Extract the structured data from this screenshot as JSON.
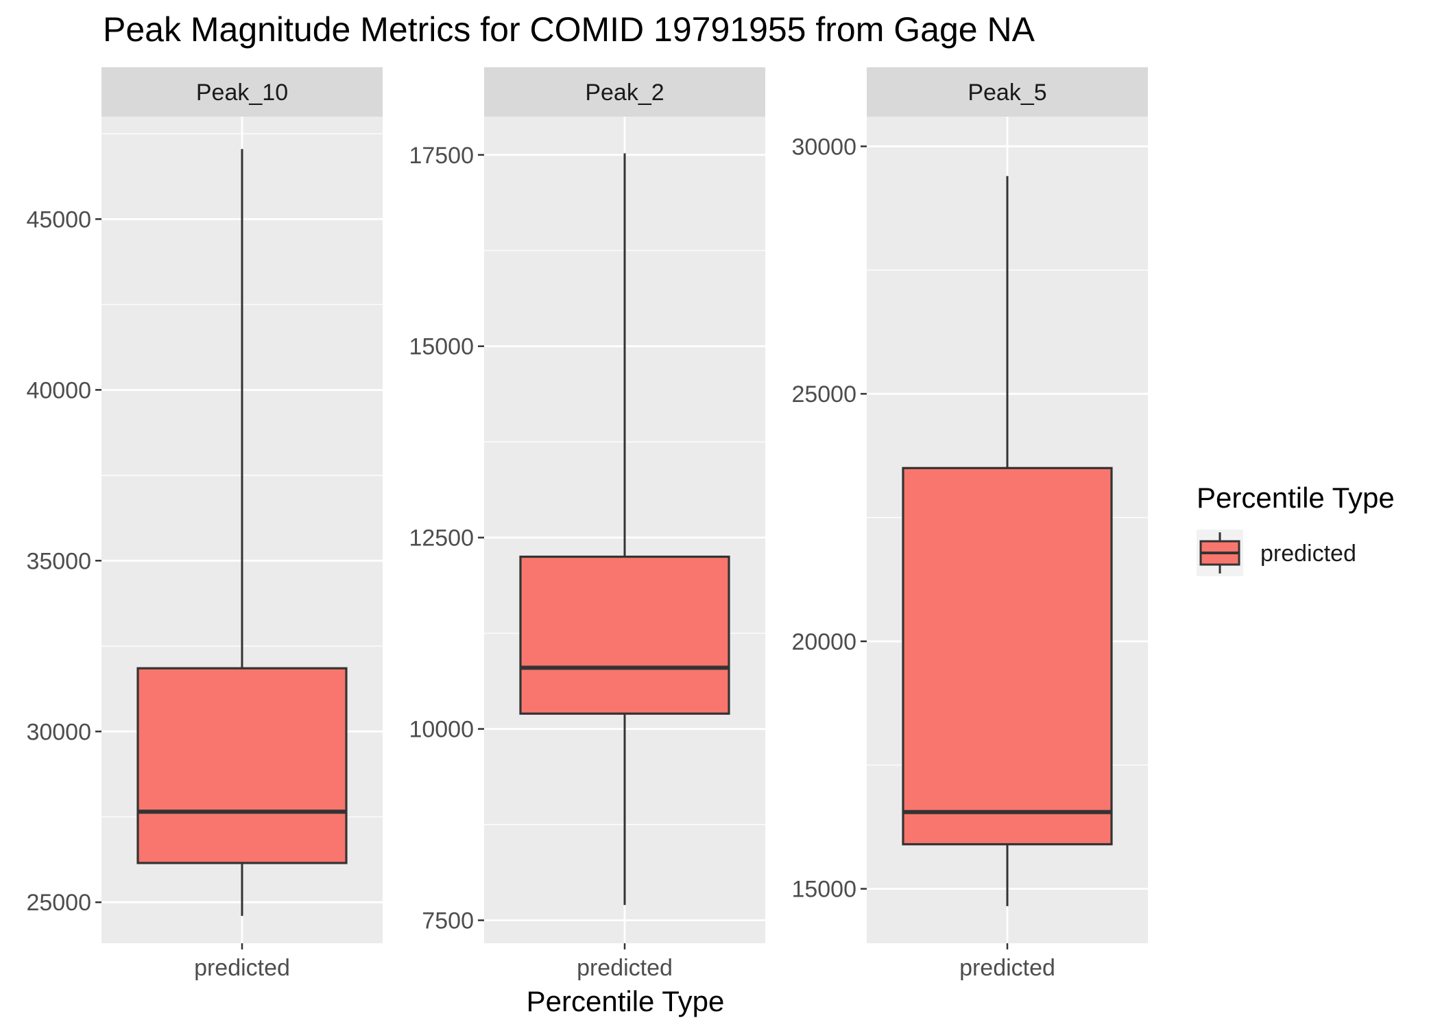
{
  "chart_data": {
    "type": "boxplot",
    "title": "Peak Magnitude Metrics for COMID 19791955 from Gage NA",
    "xlabel": "Percentile Type",
    "ylabel": "",
    "grid": true,
    "facet_scales": "free_y",
    "legend": {
      "title": "Percentile Type",
      "position": "right",
      "entries": [
        {
          "label": "predicted",
          "color": "#F8766D"
        }
      ]
    },
    "colors": {
      "box_fill": "#F8766D",
      "box_line": "#333333",
      "panel_bg": "#EBEBEB",
      "strip_bg": "#D9D9D9",
      "grid": "#FFFFFF"
    },
    "facets": [
      {
        "name": "Peak_10",
        "category": "predicted",
        "ylim": [
          23800,
          48000
        ],
        "yticks": [
          25000,
          30000,
          35000,
          40000,
          45000
        ],
        "box": {
          "min": 24600,
          "q1": 26150,
          "median": 27650,
          "q3": 31850,
          "max": 47050
        }
      },
      {
        "name": "Peak_2",
        "category": "predicted",
        "ylim": [
          7200,
          18000
        ],
        "yticks": [
          7500,
          10000,
          12500,
          15000,
          17500
        ],
        "box": {
          "min": 7700,
          "q1": 10200,
          "median": 10800,
          "q3": 12250,
          "max": 17520
        }
      },
      {
        "name": "Peak_5",
        "category": "predicted",
        "ylim": [
          13900,
          30600
        ],
        "yticks": [
          15000,
          20000,
          25000,
          30000
        ],
        "box": {
          "min": 14650,
          "q1": 15900,
          "median": 16550,
          "q3": 23500,
          "max": 29400
        }
      }
    ]
  }
}
